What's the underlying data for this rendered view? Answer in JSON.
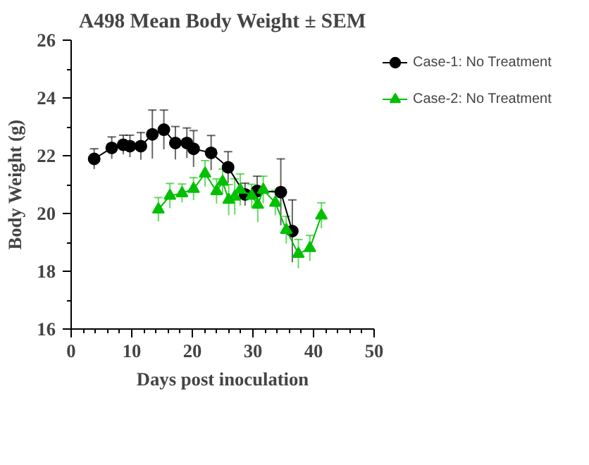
{
  "chart_data": {
    "type": "line",
    "title": "A498 Mean Body Weight ± SEM",
    "xlabel": "Days post inoculation",
    "ylabel": "Body Weight (g)",
    "xlim": [
      0,
      50
    ],
    "xticks": [
      0,
      10,
      20,
      30,
      40,
      50
    ],
    "ylim": [
      16,
      26
    ],
    "yticks": [
      16,
      18,
      20,
      22,
      24,
      26
    ],
    "grid": false,
    "legend": "right",
    "series": [
      {
        "name": "Case-1: No Treatment",
        "color": "#000000",
        "marker": "circle",
        "x": [
          3.8,
          6.7,
          8.6,
          9.7,
          11.5,
          13.4,
          15.3,
          17.2,
          19.1,
          20.2,
          23.1,
          25.9,
          28.7,
          30.7,
          34.6,
          36.5
        ],
        "values": [
          21.89,
          22.27,
          22.38,
          22.33,
          22.33,
          22.74,
          22.9,
          22.44,
          22.44,
          22.24,
          22.1,
          21.6,
          20.66,
          20.78,
          20.74,
          19.39
        ],
        "errors": [
          0.35,
          0.38,
          0.33,
          0.38,
          0.47,
          0.84,
          0.68,
          0.57,
          0.52,
          0.63,
          0.6,
          0.54,
          0.39,
          0.51,
          1.15,
          1.08
        ]
      },
      {
        "name": "Case-2: No Treatment",
        "color": "#00c000",
        "marker": "triangle",
        "x": [
          14.4,
          16.3,
          18.3,
          20.2,
          22.1,
          24,
          25,
          26,
          27,
          27.9,
          29.8,
          30.8,
          31.7,
          33.7,
          35.5,
          37.5,
          39.4,
          41.3
        ],
        "values": [
          20.14,
          20.61,
          20.7,
          20.85,
          21.38,
          20.77,
          21.1,
          20.47,
          20.58,
          20.82,
          20.61,
          20.3,
          20.82,
          20.37,
          19.43,
          18.6,
          18.8,
          19.93
        ],
        "errors": [
          0.41,
          0.43,
          0.32,
          0.39,
          0.45,
          0.43,
          0.44,
          0.53,
          0.62,
          0.55,
          0.4,
          0.6,
          0.47,
          0.43,
          0.47,
          0.5,
          0.44,
          0.44
        ]
      }
    ]
  }
}
